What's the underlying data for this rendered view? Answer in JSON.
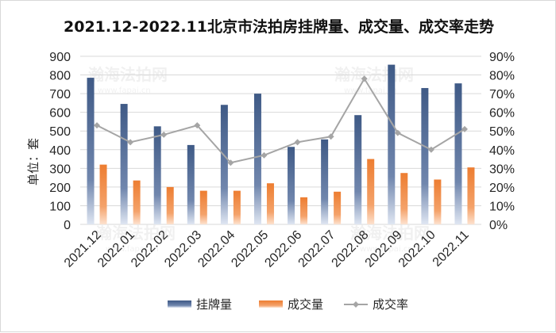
{
  "chart_data": {
    "type": "bar",
    "title": "2021.12-2022.11北京市法拍房挂牌量、成交量、成交率走势",
    "ylabel": "单位：套",
    "categories": [
      "2021.12",
      "2022.01",
      "2022.02",
      "2022.03",
      "2022.04",
      "2022.05",
      "2022.06",
      "2022.07",
      "2022.08",
      "2022.09",
      "2022.10",
      "2022.11"
    ],
    "series": [
      {
        "name": "挂牌量",
        "kind": "bar",
        "axis": "left",
        "color": "#44546a",
        "values": [
          785,
          645,
          525,
          425,
          640,
          700,
          415,
          455,
          585,
          855,
          730,
          755
        ]
      },
      {
        "name": "成交量",
        "kind": "bar",
        "axis": "left",
        "color": "#ed7d31",
        "values": [
          320,
          235,
          200,
          180,
          180,
          220,
          145,
          175,
          350,
          275,
          240,
          305
        ]
      },
      {
        "name": "成交率",
        "kind": "line",
        "axis": "right",
        "color": "#a5a5a5",
        "values": [
          53,
          44,
          48,
          53,
          33,
          37,
          44,
          47,
          78,
          49,
          40,
          51
        ]
      }
    ],
    "left_axis": {
      "min": 0,
      "max": 900,
      "step": 100
    },
    "right_axis": {
      "min": 0,
      "max": 90,
      "step": 10,
      "suffix": "%"
    },
    "legend_position": "bottom",
    "grid": true,
    "watermark": {
      "text": "瀚海法拍网",
      "url": "www.fapai.cn"
    }
  }
}
